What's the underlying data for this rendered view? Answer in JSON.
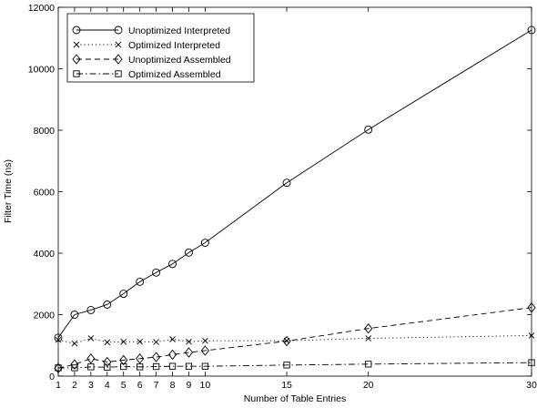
{
  "chart_data": {
    "type": "line",
    "xlabel": "Number of Table Entries",
    "ylabel": "Filter Time (ns)",
    "xlim": [
      1,
      30
    ],
    "ylim": [
      0,
      12000
    ],
    "xticks": [
      1,
      2,
      3,
      4,
      5,
      6,
      7,
      8,
      9,
      10,
      15,
      20,
      30
    ],
    "yticks": [
      0,
      2000,
      4000,
      6000,
      8000,
      10000,
      12000
    ],
    "grid": false,
    "legend_position": "top-left",
    "x": [
      1,
      2,
      3,
      4,
      5,
      6,
      7,
      8,
      9,
      10,
      15,
      20,
      30
    ],
    "series": [
      {
        "name": "Unoptimized Interpreted",
        "marker": "circle",
        "line": "solid",
        "values": [
          1250,
          2000,
          2150,
          2330,
          2680,
          3070,
          3370,
          3650,
          4020,
          4340,
          6290,
          8020,
          11260
        ]
      },
      {
        "name": "Optimized Interpreted",
        "marker": "x",
        "line": "dotted",
        "values": [
          1180,
          1060,
          1230,
          1100,
          1120,
          1120,
          1110,
          1200,
          1120,
          1150,
          1150,
          1230,
          1320
        ]
      },
      {
        "name": "Unoptimized Assembled",
        "marker": "diamond",
        "line": "dashed",
        "values": [
          260,
          380,
          570,
          460,
          520,
          570,
          620,
          700,
          770,
          830,
          1140,
          1550,
          2230
        ]
      },
      {
        "name": "Optimized Assembled",
        "marker": "square",
        "line": "dashdot",
        "values": [
          270,
          270,
          300,
          290,
          310,
          300,
          310,
          320,
          320,
          320,
          360,
          390,
          440
        ]
      }
    ]
  }
}
